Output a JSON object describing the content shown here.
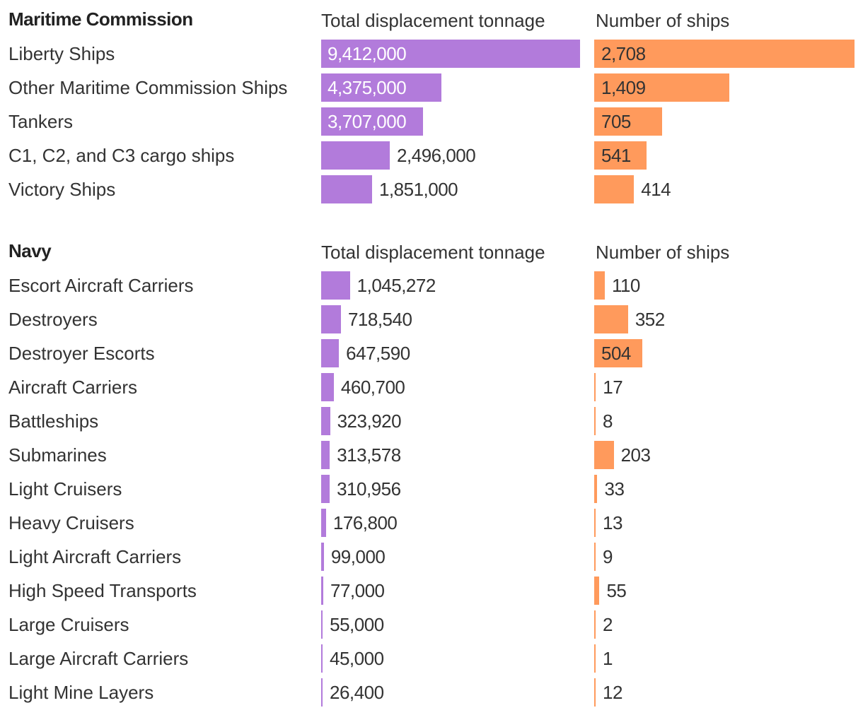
{
  "colors": {
    "tonnage_bar": "#b27bdb",
    "ships_bar": "#ff9a5c"
  },
  "chart_data": [
    {
      "type": "bar",
      "orientation": "horizontal",
      "title": "Maritime Commission",
      "categories": [
        "Liberty Ships",
        "Other Maritime Commission Ships",
        "Tankers",
        "C1, C2, and C3 cargo ships",
        "Victory Ships"
      ],
      "series": [
        {
          "name": "Total displacement tonnage",
          "values": [
            9412000,
            4375000,
            3707000,
            2496000,
            1851000
          ],
          "labels": [
            "9,412,000",
            "4,375,000",
            "3,707,000",
            "2,496,000",
            "1,851,000"
          ]
        },
        {
          "name": "Number of ships",
          "values": [
            2708,
            1409,
            705,
            541,
            414
          ],
          "labels": [
            "2,708",
            "1,409",
            "705",
            "541",
            "414"
          ]
        }
      ]
    },
    {
      "type": "bar",
      "orientation": "horizontal",
      "title": "Navy",
      "categories": [
        "Escort Aircraft Carriers",
        "Destroyers",
        "Destroyer Escorts",
        "Aircraft Carriers",
        "Battleships",
        "Submarines",
        "Light Cruisers",
        "Heavy Cruisers",
        "Light Aircraft Carriers",
        "High Speed Transports",
        "Large Cruisers",
        "Large Aircraft Carriers",
        "Light Mine Layers"
      ],
      "series": [
        {
          "name": "Total displacement tonnage",
          "values": [
            1045272,
            718540,
            647590,
            460700,
            323920,
            313578,
            310956,
            176800,
            99000,
            77000,
            55000,
            45000,
            26400
          ],
          "labels": [
            "1,045,272",
            "718,540",
            "647,590",
            "460,700",
            "323,920",
            "313,578",
            "310,956",
            "176,800",
            "99,000",
            "77,000",
            "55,000",
            "45,000",
            "26,400"
          ]
        },
        {
          "name": "Number of ships",
          "values": [
            110,
            352,
            504,
            17,
            8,
            203,
            33,
            13,
            9,
            55,
            2,
            1,
            12
          ],
          "labels": [
            "110",
            "352",
            "504",
            "17",
            "8",
            "203",
            "33",
            "13",
            "9",
            "55",
            "2",
            "1",
            "12"
          ]
        }
      ]
    }
  ]
}
